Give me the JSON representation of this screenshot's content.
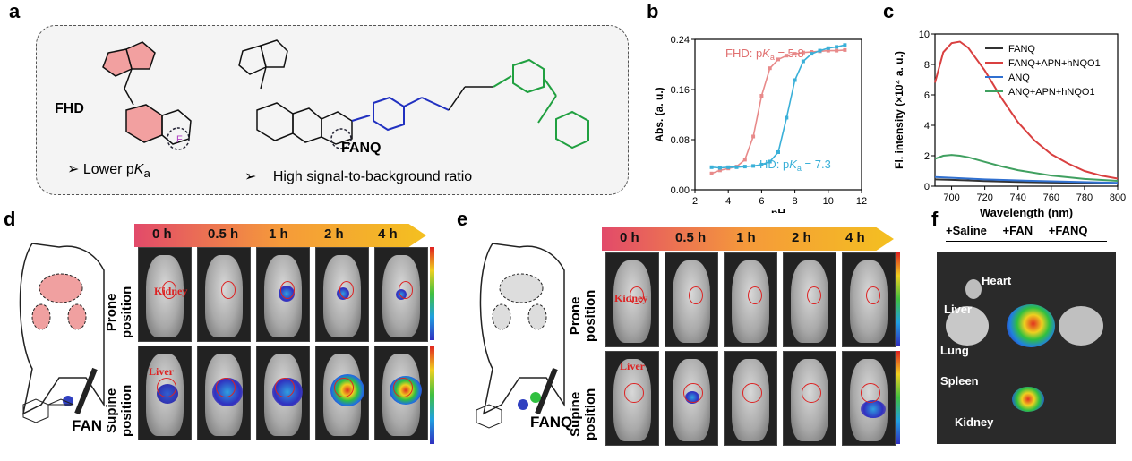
{
  "panels": {
    "a": "a",
    "b": "b",
    "c": "c",
    "d": "d",
    "e": "e",
    "f": "f"
  },
  "panel_a": {
    "mol1": "FHD",
    "mol2": "FANQ",
    "bullet1_pre": "Lower p",
    "bullet1_k": "K",
    "bullet1_sub": "a",
    "bullet2": "High signal-to-background  ratio",
    "bullet_symbol": "➢"
  },
  "chart_data": [
    {
      "type": "line",
      "panel": "b",
      "xlabel": "pH",
      "ylabel": "Abs. (a. u.)",
      "xlim": [
        2,
        12
      ],
      "ylim": [
        0,
        0.24
      ],
      "xticks": [
        "2",
        "4",
        "6",
        "8",
        "10",
        "12"
      ],
      "yticks": [
        "0.00",
        "0.08",
        "0.16",
        "0.24"
      ],
      "annotations": [
        {
          "text_pre": "FHD: p",
          "text_k": "K",
          "text_sub": "a",
          "text_post": " = 5.8",
          "color": "#e07070"
        },
        {
          "text_pre": "HD: p",
          "text_k": "K",
          "text_sub": "a",
          "text_post": " = 7.3",
          "color": "#3ab0d8"
        }
      ],
      "series": [
        {
          "color": "#e88a8a",
          "x": [
            3.0,
            3.5,
            4.0,
            4.5,
            5.0,
            5.5,
            6.0,
            6.5,
            7.0,
            7.5,
            8.0,
            8.5,
            9.0,
            9.5,
            10.0,
            10.5,
            11.0
          ],
          "y": [
            0.026,
            0.031,
            0.034,
            0.037,
            0.048,
            0.085,
            0.15,
            0.194,
            0.208,
            0.214,
            0.217,
            0.219,
            0.22,
            0.221,
            0.222,
            0.222,
            0.223
          ]
        },
        {
          "color": "#3ab0d8",
          "x": [
            3.0,
            3.5,
            4.0,
            4.5,
            5.0,
            5.5,
            6.0,
            6.5,
            7.0,
            7.5,
            8.0,
            8.5,
            9.0,
            9.5,
            10.0,
            10.5,
            11.0
          ],
          "y": [
            0.036,
            0.035,
            0.036,
            0.036,
            0.037,
            0.038,
            0.04,
            0.045,
            0.06,
            0.115,
            0.175,
            0.205,
            0.217,
            0.222,
            0.226,
            0.228,
            0.231
          ]
        }
      ]
    },
    {
      "type": "line",
      "panel": "c",
      "xlabel": "Wavelength (nm)",
      "ylabel": "Fl. intensity (×10⁴ a. u.)",
      "xlim": [
        690,
        800
      ],
      "ylim": [
        0,
        10
      ],
      "xticks": [
        "700",
        "720",
        "740",
        "760",
        "780",
        "800"
      ],
      "yticks": [
        "0",
        "2",
        "4",
        "6",
        "8",
        "10"
      ],
      "series": [
        {
          "name": "FANQ",
          "color": "#333333",
          "x": [
            690,
            700,
            710,
            720,
            740,
            760,
            780,
            800
          ],
          "y": [
            0.45,
            0.42,
            0.38,
            0.34,
            0.28,
            0.24,
            0.22,
            0.2
          ]
        },
        {
          "name": "FANQ+APN+hNQO1",
          "color": "#d94040",
          "x": [
            690,
            695,
            700,
            705,
            710,
            720,
            730,
            740,
            750,
            760,
            770,
            780,
            790,
            800
          ],
          "y": [
            6.8,
            8.8,
            9.4,
            9.5,
            9.1,
            7.6,
            5.8,
            4.2,
            3.0,
            2.1,
            1.5,
            1.0,
            0.7,
            0.5
          ]
        },
        {
          "name": "ANQ",
          "color": "#3070d0",
          "x": [
            690,
            700,
            710,
            720,
            740,
            760,
            780,
            800
          ],
          "y": [
            0.6,
            0.55,
            0.5,
            0.45,
            0.38,
            0.32,
            0.27,
            0.22
          ]
        },
        {
          "name": "ANQ+APN+hNQO1",
          "color": "#40a060",
          "x": [
            690,
            695,
            700,
            705,
            710,
            720,
            730,
            740,
            760,
            780,
            800
          ],
          "y": [
            1.8,
            2.0,
            2.05,
            2.0,
            1.9,
            1.6,
            1.3,
            1.05,
            0.7,
            0.48,
            0.35
          ]
        }
      ]
    }
  ],
  "panel_d": {
    "times": [
      "0 h",
      "0.5 h",
      "1 h",
      "2 h",
      "4 h"
    ],
    "row1": "Prone position",
    "row1a": "Prone",
    "row1b": "position",
    "row2a": "Supine",
    "row2b": "position",
    "kidney": "Kidney",
    "liver": "Liver",
    "probe": "FAN"
  },
  "panel_e": {
    "times": [
      "0 h",
      "0.5 h",
      "1 h",
      "2 h",
      "4 h"
    ],
    "row1a": "Prone",
    "row1b": "position",
    "row2a": "Supine",
    "row2b": "position",
    "kidney": "Kidney",
    "liver": "Liver",
    "probe": "FANQ"
  },
  "panel_f": {
    "cols": [
      "+Saline",
      "+FAN",
      "+FANQ"
    ],
    "organs": [
      "Heart",
      "Liver",
      "Lung",
      "Spleen",
      "Kidney"
    ]
  }
}
